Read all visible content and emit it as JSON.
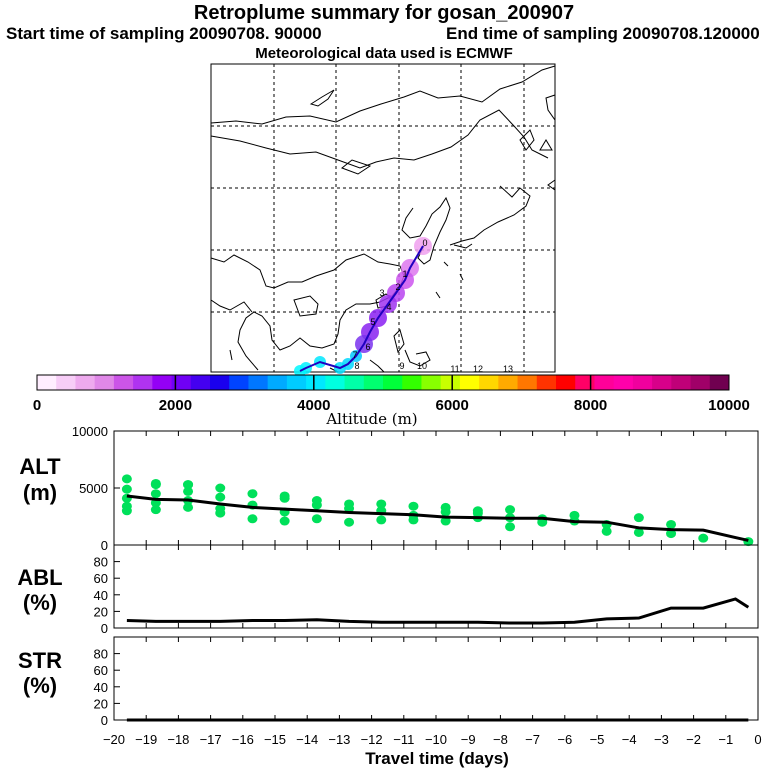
{
  "header": {
    "title": "Retroplume summary for gosan_200907",
    "start": "Start time of sampling 20090708. 90000",
    "end": "End time of sampling 20090708.120000",
    "met": "Meteorological data used is ECMWF"
  },
  "colorbar": {
    "label": "Altitude (m)",
    "ticks": [
      "0",
      "2000",
      "4000",
      "6000",
      "8000",
      "10000"
    ],
    "colors": [
      "#ffeeff",
      "#f7cdf7",
      "#eeaaee",
      "#e088e8",
      "#cc55e8",
      "#b033f0",
      "#9400f5",
      "#7000f5",
      "#4400f0",
      "#1a00ee",
      "#0044ff",
      "#0077ff",
      "#00aaff",
      "#00ccff",
      "#00e8ff",
      "#00ffe0",
      "#00ffa8",
      "#00ff70",
      "#00ff3a",
      "#33ff00",
      "#88ff00",
      "#c8ff00",
      "#ffff00",
      "#ffd700",
      "#ffaa00",
      "#ff7700",
      "#ff3300",
      "#ff0000",
      "#ff0066",
      "#ff0099",
      "#ff00aa",
      "#f0009e",
      "#d8008a",
      "#c00078",
      "#a00068",
      "#700050"
    ]
  },
  "map": {
    "labels": [
      "0",
      "1",
      "2",
      "3",
      "4",
      "5",
      "6",
      "7",
      "8",
      "9",
      "10",
      "11",
      "12",
      "13"
    ]
  },
  "axes": {
    "xlabel": "Travel time (days)",
    "xticks": [
      "−20",
      "−19",
      "−18",
      "−17",
      "−16",
      "−15",
      "−14",
      "−13",
      "−12",
      "−11",
      "−10",
      "−9",
      "−8",
      "−7",
      "−6",
      "−5",
      "−4",
      "−3",
      "−2",
      "−1",
      "0"
    ],
    "alt_label": [
      "ALT",
      "(m)"
    ],
    "alt_ticks": [
      "10000",
      "5000",
      "0"
    ],
    "abl_label": [
      "ABL",
      "(%)"
    ],
    "abl_ticks": [
      "80",
      "60",
      "40",
      "20",
      "0"
    ],
    "str_label": [
      "STR",
      "(%)"
    ],
    "str_ticks": [
      "80",
      "60",
      "40",
      "20",
      "0"
    ]
  },
  "chart_data": [
    {
      "type": "line",
      "title": "ALT",
      "ylabel": "ALT (m)",
      "xlabel": "Travel time (days)",
      "xlim": [
        -20,
        0
      ],
      "ylim": [
        0,
        10000
      ],
      "x": [
        -19.6,
        -18.7,
        -17.7,
        -16.7,
        -15.7,
        -14.7,
        -13.7,
        -12.7,
        -11.7,
        -10.7,
        -9.7,
        -8.7,
        -7.7,
        -6.7,
        -5.7,
        -4.7,
        -3.7,
        -2.7,
        -1.7,
        -0.7,
        -0.3
      ],
      "series": [
        {
          "name": "mean altitude",
          "values": [
            4300,
            4000,
            3950,
            3600,
            3300,
            3150,
            3000,
            2850,
            2750,
            2650,
            2450,
            2400,
            2350,
            2350,
            2050,
            2000,
            1500,
            1350,
            1300,
            650,
            400
          ]
        }
      ],
      "scatter": {
        "name": "cluster altitudes",
        "color": "#00e05a",
        "x": [
          -19.6,
          -19.6,
          -19.6,
          -19.6,
          -19.6,
          -18.7,
          -18.7,
          -18.7,
          -18.7,
          -18.7,
          -17.7,
          -17.7,
          -17.7,
          -17.7,
          -17.7,
          -16.7,
          -16.7,
          -16.7,
          -16.7,
          -15.7,
          -15.7,
          -15.7,
          -14.7,
          -14.7,
          -14.7,
          -14.7,
          -13.7,
          -13.7,
          -13.7,
          -12.7,
          -12.7,
          -12.7,
          -11.7,
          -11.7,
          -11.7,
          -10.7,
          -10.7,
          -10.7,
          -9.7,
          -9.7,
          -9.7,
          -8.7,
          -8.7,
          -8.7,
          -7.7,
          -7.7,
          -7.7,
          -6.7,
          -6.7,
          -5.7,
          -5.7,
          -4.7,
          -4.7,
          -3.7,
          -3.7,
          -2.7,
          -2.7,
          -1.7,
          -0.3
        ],
        "y": [
          5800,
          4900,
          4100,
          3400,
          3000,
          5400,
          4500,
          3700,
          3100,
          5300,
          5300,
          4700,
          3900,
          3300,
          5300,
          5000,
          4200,
          3200,
          2800,
          4500,
          3500,
          2300,
          4300,
          4100,
          2900,
          2100,
          3900,
          3500,
          2300,
          3600,
          3200,
          2000,
          3600,
          3000,
          2200,
          3400,
          2600,
          2200,
          3300,
          2900,
          2100,
          3000,
          2400,
          2800,
          3100,
          2400,
          1600,
          2300,
          2000,
          2600,
          2100,
          1800,
          1200,
          2400,
          1100,
          1800,
          1000,
          600,
          300
        ]
      }
    },
    {
      "type": "line",
      "title": "ABL",
      "ylabel": "ABL (%)",
      "xlabel": "Travel time (days)",
      "xlim": [
        -20,
        0
      ],
      "ylim": [
        0,
        100
      ],
      "x": [
        -19.6,
        -18.7,
        -17.7,
        -16.7,
        -15.7,
        -14.7,
        -13.7,
        -12.7,
        -11.7,
        -10.7,
        -9.7,
        -8.7,
        -7.7,
        -6.7,
        -5.7,
        -4.7,
        -3.7,
        -2.7,
        -1.7,
        -0.7,
        -0.3
      ],
      "series": [
        {
          "name": "ABL",
          "values": [
            9,
            8,
            8,
            8,
            9,
            9,
            10,
            8,
            7,
            7,
            7,
            7,
            6,
            6,
            7,
            11,
            12,
            24,
            24,
            35,
            25
          ]
        }
      ]
    },
    {
      "type": "line",
      "title": "STR",
      "ylabel": "STR (%)",
      "xlabel": "Travel time (days)",
      "xlim": [
        -20,
        0
      ],
      "ylim": [
        0,
        100
      ],
      "x": [
        -19.6,
        -0.3
      ],
      "series": [
        {
          "name": "STR",
          "values": [
            0,
            0
          ]
        }
      ]
    }
  ]
}
